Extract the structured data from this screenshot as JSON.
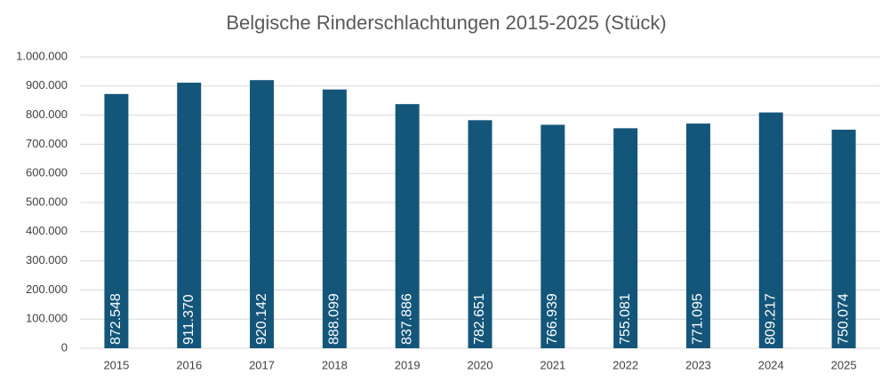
{
  "chart_data": {
    "type": "bar",
    "title": "Belgische Rinderschlachtungen 2015-2025 (Stück)",
    "categories": [
      "2015",
      "2016",
      "2017",
      "2018",
      "2019",
      "2020",
      "2021",
      "2022",
      "2023",
      "2024",
      "2025"
    ],
    "values": [
      872548,
      911370,
      920142,
      888099,
      837886,
      782651,
      766939,
      755081,
      771095,
      809217,
      750074
    ],
    "value_labels": [
      "872.548",
      "911.370",
      "920.142",
      "888.099",
      "837.886",
      "782.651",
      "766.939",
      "755.081",
      "771.095",
      "809.217",
      "750.074"
    ],
    "color": "#14567a",
    "ylim": [
      0,
      1000000
    ],
    "yticks": [
      0,
      {
        "value": 100000,
        "label": "100.000"
      },
      {
        "value": 200000,
        "label": "200.000"
      },
      {
        "value": 300000,
        "label": "300.000"
      },
      {
        "value": 400000,
        "label": "400.000"
      },
      {
        "value": 500000,
        "label": "500.000"
      },
      {
        "value": 600000,
        "label": "600.000"
      },
      {
        "value": 700000,
        "label": "700.000"
      },
      {
        "value": 800000,
        "label": "800.000"
      },
      {
        "value": 900000,
        "label": "900.000"
      },
      {
        "value": 1000000,
        "label": "1.000.000"
      }
    ],
    "grid": true
  }
}
